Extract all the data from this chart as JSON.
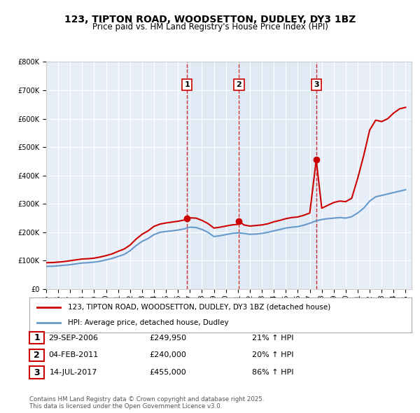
{
  "title": "123, TIPTON ROAD, WOODSETTON, DUDLEY, DY3 1BZ",
  "subtitle": "Price paid vs. HM Land Registry's House Price Index (HPI)",
  "legend_line1": "123, TIPTON ROAD, WOODSETTON, DUDLEY, DY3 1BZ (detached house)",
  "legend_line2": "HPI: Average price, detached house, Dudley",
  "red_color": "#cc0000",
  "blue_color": "#6699cc",
  "bg_color": "#e8eef8",
  "grid_color": "#ffffff",
  "table_entries": [
    {
      "num": 1,
      "date": "29-SEP-2006",
      "price": "£249,950",
      "hpi": "21% ↑ HPI",
      "year_dec": 2006.75
    },
    {
      "num": 2,
      "date": "04-FEB-2011",
      "price": "£240,000",
      "hpi": "20% ↑ HPI",
      "year_dec": 2011.09
    },
    {
      "num": 3,
      "date": "14-JUL-2017",
      "price": "£455,000",
      "hpi": "86% ↑ HPI",
      "year_dec": 2017.54
    }
  ],
  "footer": "Contains HM Land Registry data © Crown copyright and database right 2025.\nThis data is licensed under the Open Government Licence v3.0.",
  "ylim": [
    0,
    800000
  ],
  "yticks": [
    0,
    100000,
    200000,
    300000,
    400000,
    500000,
    600000,
    700000,
    800000
  ],
  "ytick_labels": [
    "£0",
    "£100K",
    "£200K",
    "£300K",
    "£400K",
    "£500K",
    "£600K",
    "£700K",
    "£800K"
  ],
  "xlim_start": 1995.0,
  "xlim_end": 2025.5,
  "hpi_data": {
    "years": [
      1995.0,
      1995.5,
      1996.0,
      1996.5,
      1997.0,
      1997.5,
      1998.0,
      1998.5,
      1999.0,
      1999.5,
      2000.0,
      2000.5,
      2001.0,
      2001.5,
      2002.0,
      2002.5,
      2003.0,
      2003.5,
      2004.0,
      2004.5,
      2005.0,
      2005.5,
      2006.0,
      2006.5,
      2007.0,
      2007.5,
      2008.0,
      2008.5,
      2009.0,
      2009.5,
      2010.0,
      2010.5,
      2011.0,
      2011.5,
      2012.0,
      2012.5,
      2013.0,
      2013.5,
      2014.0,
      2014.5,
      2015.0,
      2015.5,
      2016.0,
      2016.5,
      2017.0,
      2017.5,
      2018.0,
      2018.5,
      2019.0,
      2019.5,
      2020.0,
      2020.5,
      2021.0,
      2021.5,
      2022.0,
      2022.5,
      2023.0,
      2023.5,
      2024.0,
      2024.5,
      2025.0
    ],
    "values": [
      80000,
      80500,
      82000,
      84000,
      86000,
      89000,
      92000,
      93000,
      95000,
      98000,
      103000,
      108000,
      115000,
      122000,
      135000,
      153000,
      168000,
      178000,
      192000,
      200000,
      203000,
      205000,
      208000,
      212000,
      218000,
      217000,
      210000,
      200000,
      185000,
      188000,
      192000,
      196000,
      198000,
      196000,
      193000,
      194000,
      196000,
      200000,
      205000,
      210000,
      215000,
      218000,
      220000,
      225000,
      232000,
      240000,
      245000,
      248000,
      250000,
      252000,
      250000,
      255000,
      268000,
      285000,
      310000,
      325000,
      330000,
      335000,
      340000,
      345000,
      350000
    ]
  },
  "price_data": {
    "years": [
      1995.0,
      1995.5,
      1996.0,
      1996.5,
      1997.0,
      1997.5,
      1998.0,
      1998.5,
      1999.0,
      1999.5,
      2000.0,
      2000.5,
      2001.0,
      2001.5,
      2002.0,
      2002.5,
      2003.0,
      2003.5,
      2004.0,
      2004.5,
      2005.0,
      2005.5,
      2006.0,
      2006.5,
      2006.75,
      2007.0,
      2007.5,
      2008.0,
      2008.5,
      2009.0,
      2009.5,
      2010.0,
      2010.5,
      2011.0,
      2011.09,
      2011.5,
      2012.0,
      2012.5,
      2013.0,
      2013.5,
      2014.0,
      2014.5,
      2015.0,
      2015.5,
      2016.0,
      2016.5,
      2017.0,
      2017.54,
      2018.0,
      2018.5,
      2019.0,
      2019.5,
      2020.0,
      2020.5,
      2021.0,
      2021.5,
      2022.0,
      2022.5,
      2023.0,
      2023.5,
      2024.0,
      2024.5,
      2025.0
    ],
    "values": [
      93000,
      93500,
      95000,
      97000,
      100000,
      103000,
      106000,
      107000,
      109000,
      113000,
      118000,
      124000,
      133000,
      141000,
      155000,
      176000,
      193000,
      205000,
      221000,
      229000,
      233000,
      236000,
      239000,
      243000,
      249950,
      251000,
      250000,
      242000,
      231000,
      215000,
      218000,
      222000,
      226000,
      228000,
      240000,
      226000,
      222000,
      224000,
      226000,
      230000,
      237000,
      242000,
      248000,
      252000,
      254000,
      260000,
      268000,
      455000,
      285000,
      295000,
      305000,
      310000,
      308000,
      320000,
      390000,
      470000,
      560000,
      595000,
      590000,
      600000,
      620000,
      635000,
      640000
    ]
  }
}
